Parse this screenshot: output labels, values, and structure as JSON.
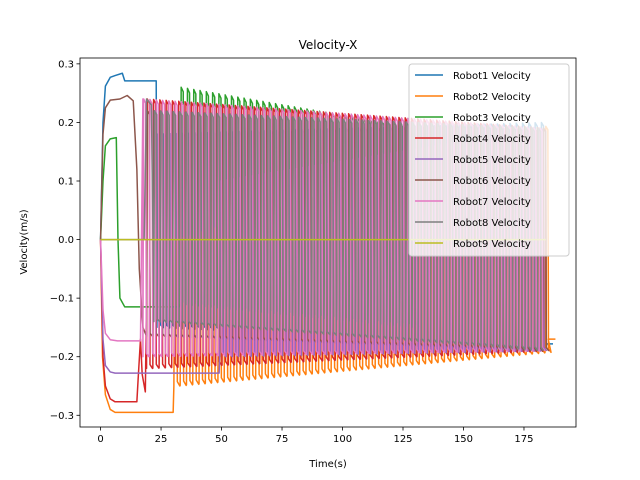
{
  "chart_data": {
    "type": "line",
    "title": "Velocity-X",
    "xlabel": "Time(s)",
    "ylabel": "Velocity(m/s)",
    "xlim": [
      -8.5,
      196.5
    ],
    "ylim": [
      -0.32,
      0.31
    ],
    "xticks": [
      0,
      25,
      50,
      75,
      100,
      125,
      150,
      175
    ],
    "xtick_labels": [
      "0",
      "25",
      "50",
      "75",
      "100",
      "125",
      "150",
      "175"
    ],
    "yticks": [
      -0.3,
      -0.2,
      -0.1,
      0.0,
      0.1,
      0.2,
      0.3
    ],
    "ytick_labels": [
      "−0.3",
      "−0.2",
      "−0.1",
      "0.0",
      "0.1",
      "0.2",
      "0.3"
    ],
    "grid": false,
    "legend_position": "top-right",
    "series": [
      {
        "name": "Robot1 Velocity",
        "color": "#1f77b4",
        "segments": [
          {
            "kind": "line",
            "points": [
              [
                0,
                0
              ],
              [
                1,
                0.2
              ],
              [
                2,
                0.262
              ],
              [
                4,
                0.277
              ],
              [
                6,
                0.28
              ],
              [
                9,
                0.284
              ],
              [
                10,
                0.271
              ],
              [
                23,
                0.271
              ],
              [
                23.3,
                -0.15
              ]
            ]
          },
          {
            "kind": "osc",
            "t0": 23.3,
            "t1": 183,
            "period": 2.6,
            "hi0": 0.18,
            "hi1": 0.2,
            "lo0": -0.15,
            "lo1": -0.18
          },
          {
            "kind": "line",
            "points": [
              [
                183,
                -0.178
              ],
              [
                187,
                -0.178
              ]
            ]
          }
        ]
      },
      {
        "name": "Robot2 Velocity",
        "color": "#ff7f0e",
        "segments": [
          {
            "kind": "line",
            "points": [
              [
                0,
                0
              ],
              [
                0.8,
                -0.2
              ],
              [
                2,
                -0.265
              ],
              [
                4,
                -0.29
              ],
              [
                6,
                -0.295
              ],
              [
                30,
                -0.295
              ],
              [
                30.3,
                -0.25
              ]
            ]
          },
          {
            "kind": "osc",
            "t0": 30.3,
            "t1": 185,
            "period": 2.6,
            "hi0": 0.0,
            "hi1": 0.195,
            "lo0": -0.25,
            "lo1": -0.192
          },
          {
            "kind": "line",
            "points": [
              [
                185,
                -0.17
              ],
              [
                188,
                -0.17
              ]
            ]
          }
        ]
      },
      {
        "name": "Robot3 Velocity",
        "color": "#2ca02c",
        "segments": [
          {
            "kind": "line",
            "points": [
              [
                0,
                0
              ],
              [
                1,
                0.1
              ],
              [
                2,
                0.16
              ],
              [
                4,
                0.172
              ],
              [
                6.5,
                0.174
              ],
              [
                7.2,
                0.0
              ],
              [
                8,
                -0.1
              ],
              [
                10,
                -0.115
              ],
              [
                32.5,
                -0.115
              ],
              [
                33,
                -0.11
              ]
            ]
          },
          {
            "kind": "osc",
            "t0": 33,
            "t1": 131,
            "period": 2.6,
            "hi0": 0.26,
            "hi1": 0.19,
            "lo0": -0.11,
            "lo1": -0.15
          }
        ]
      },
      {
        "name": "Robot4 Velocity",
        "color": "#d62728",
        "segments": [
          {
            "kind": "line",
            "points": [
              [
                0,
                0
              ],
              [
                1,
                -0.2
              ],
              [
                2,
                -0.25
              ],
              [
                4,
                -0.272
              ],
              [
                6,
                -0.277
              ],
              [
                15,
                -0.277
              ],
              [
                15.5,
                -0.24
              ],
              [
                16.5,
                -0.17
              ],
              [
                17.2,
                -0.23
              ],
              [
                18.5,
                -0.26
              ],
              [
                19,
                -0.1
              ]
            ]
          },
          {
            "kind": "osc",
            "t0": 19,
            "t1": 184,
            "period": 2.6,
            "hi0": 0.24,
            "hi1": 0.19,
            "lo0": -0.22,
            "lo1": -0.19
          }
        ]
      },
      {
        "name": "Robot5 Velocity",
        "color": "#9467bd",
        "segments": [
          {
            "kind": "line",
            "points": [
              [
                0,
                0
              ],
              [
                1,
                -0.17
              ],
              [
                2,
                -0.215
              ],
              [
                4,
                -0.226
              ],
              [
                6,
                -0.228
              ],
              [
                49,
                -0.228
              ],
              [
                49.3,
                -0.19
              ]
            ]
          },
          {
            "kind": "osc",
            "t0": 49.3,
            "t1": 183,
            "period": 2.6,
            "hi0": 0.1,
            "hi1": 0.19,
            "lo0": -0.2,
            "lo1": -0.19
          }
        ]
      },
      {
        "name": "Robot6 Velocity",
        "color": "#8c564b",
        "segments": [
          {
            "kind": "line",
            "points": [
              [
                0,
                0
              ],
              [
                1,
                0.18
              ],
              [
                2,
                0.225
              ],
              [
                4,
                0.238
              ],
              [
                8,
                0.24
              ],
              [
                11,
                0.246
              ],
              [
                13.5,
                0.237
              ],
              [
                15,
                0.12
              ],
              [
                16,
                -0.05
              ],
              [
                17.5,
                -0.15
              ],
              [
                19,
                -0.165
              ]
            ]
          },
          {
            "kind": "osc",
            "t0": 19,
            "t1": 183,
            "period": 2.6,
            "hi0": 0.22,
            "hi1": 0.19,
            "lo0": -0.165,
            "lo1": -0.19
          }
        ]
      },
      {
        "name": "Robot7 Velocity",
        "color": "#e377c2",
        "segments": [
          {
            "kind": "line",
            "points": [
              [
                0,
                0
              ],
              [
                1,
                -0.12
              ],
              [
                2,
                -0.16
              ],
              [
                4,
                -0.171
              ],
              [
                7,
                -0.173
              ],
              [
                16.5,
                -0.173
              ],
              [
                17.5,
                0.24
              ]
            ]
          },
          {
            "kind": "osc",
            "t0": 17.5,
            "t1": 183,
            "period": 2.6,
            "hi0": 0.24,
            "hi1": 0.19,
            "lo0": -0.2,
            "lo1": -0.19
          }
        ]
      },
      {
        "name": "Robot8 Velocity",
        "color": "#7f7f7f",
        "segments": [
          {
            "kind": "line",
            "points": [
              [
                0,
                0
              ],
              [
                0.5,
                0.0
              ],
              [
                18,
                0.0
              ],
              [
                19,
                0.24
              ],
              [
                21,
                0.23
              ],
              [
                22,
                -0.1
              ]
            ]
          },
          {
            "kind": "osc",
            "t0": 22,
            "t1": 183,
            "period": 2.6,
            "hi0": 0.22,
            "hi1": 0.19,
            "lo0": -0.14,
            "lo1": -0.19
          }
        ]
      },
      {
        "name": "Robot9 Velocity",
        "color": "#bcbd22",
        "segments": [
          {
            "kind": "line",
            "points": [
              [
                0,
                0
              ],
              [
                184,
                0
              ]
            ]
          }
        ]
      }
    ]
  }
}
